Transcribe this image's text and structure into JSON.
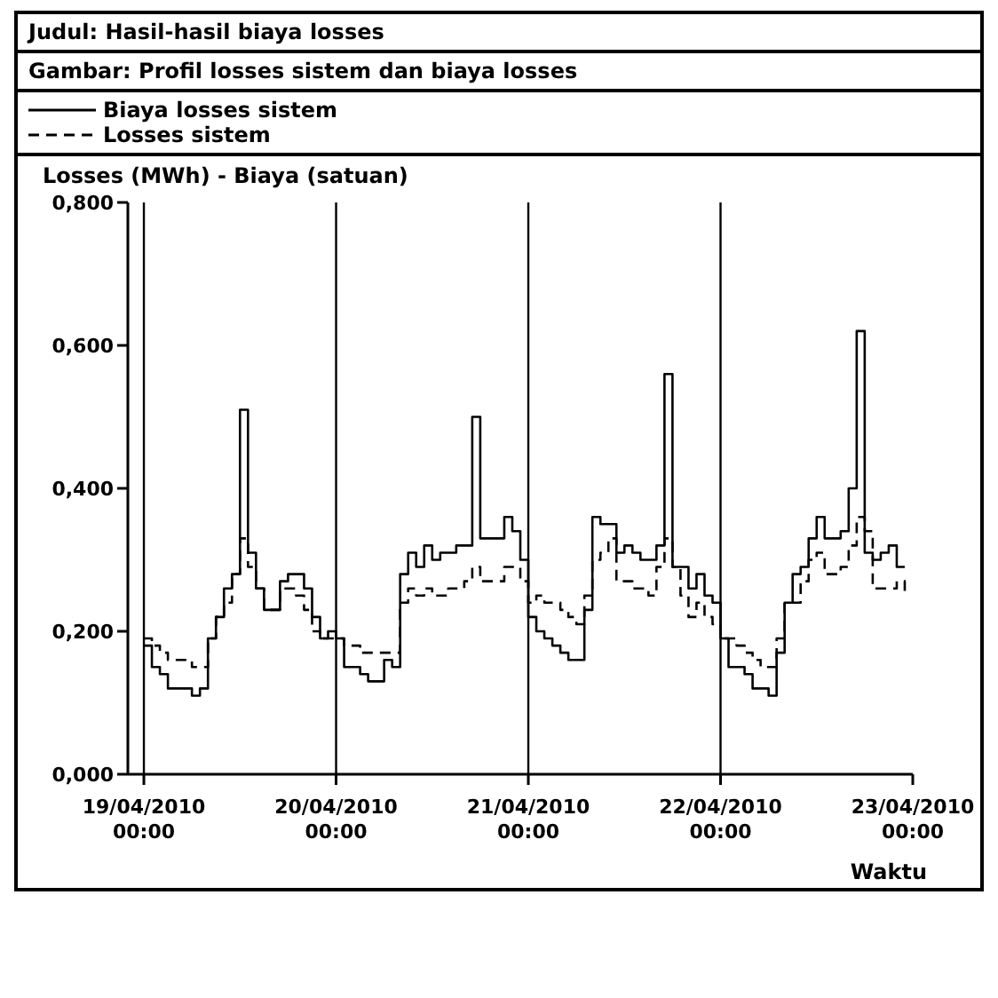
{
  "chart_data": {
    "type": "step",
    "title": "Judul: Hasil-hasil biaya losses",
    "subtitle": "Gambar: Profil losses sistem dan biaya losses",
    "xlabel": "Waktu",
    "ylabel": "Losses (MWh) - Biaya (satuan)",
    "x": [
      "2010-04-19T00:00",
      "2010-04-19T01:00",
      "2010-04-19T02:00",
      "2010-04-19T03:00",
      "2010-04-19T04:00",
      "2010-04-19T05:00",
      "2010-04-19T06:00",
      "2010-04-19T07:00",
      "2010-04-19T08:00",
      "2010-04-19T09:00",
      "2010-04-19T10:00",
      "2010-04-19T11:00",
      "2010-04-19T12:00",
      "2010-04-19T13:00",
      "2010-04-19T14:00",
      "2010-04-19T15:00",
      "2010-04-19T16:00",
      "2010-04-19T17:00",
      "2010-04-19T18:00",
      "2010-04-19T19:00",
      "2010-04-19T20:00",
      "2010-04-19T21:00",
      "2010-04-19T22:00",
      "2010-04-19T23:00",
      "2010-04-20T00:00",
      "2010-04-20T01:00",
      "2010-04-20T02:00",
      "2010-04-20T03:00",
      "2010-04-20T04:00",
      "2010-04-20T05:00",
      "2010-04-20T06:00",
      "2010-04-20T07:00",
      "2010-04-20T08:00",
      "2010-04-20T09:00",
      "2010-04-20T10:00",
      "2010-04-20T11:00",
      "2010-04-20T12:00",
      "2010-04-20T13:00",
      "2010-04-20T14:00",
      "2010-04-20T15:00",
      "2010-04-20T16:00",
      "2010-04-20T17:00",
      "2010-04-20T18:00",
      "2010-04-20T19:00",
      "2010-04-20T20:00",
      "2010-04-20T21:00",
      "2010-04-20T22:00",
      "2010-04-20T23:00",
      "2010-04-21T00:00",
      "2010-04-21T01:00",
      "2010-04-21T02:00",
      "2010-04-21T03:00",
      "2010-04-21T04:00",
      "2010-04-21T05:00",
      "2010-04-21T06:00",
      "2010-04-21T07:00",
      "2010-04-21T08:00",
      "2010-04-21T09:00",
      "2010-04-21T10:00",
      "2010-04-21T11:00",
      "2010-04-21T12:00",
      "2010-04-21T13:00",
      "2010-04-21T14:00",
      "2010-04-21T15:00",
      "2010-04-21T16:00",
      "2010-04-21T17:00",
      "2010-04-21T18:00",
      "2010-04-21T19:00",
      "2010-04-21T20:00",
      "2010-04-21T21:00",
      "2010-04-21T22:00",
      "2010-04-21T23:00",
      "2010-04-22T00:00",
      "2010-04-22T01:00",
      "2010-04-22T02:00",
      "2010-04-22T03:00",
      "2010-04-22T04:00",
      "2010-04-22T05:00",
      "2010-04-22T06:00",
      "2010-04-22T07:00",
      "2010-04-22T08:00",
      "2010-04-22T09:00",
      "2010-04-22T10:00",
      "2010-04-22T11:00",
      "2010-04-22T12:00",
      "2010-04-22T13:00",
      "2010-04-22T14:00",
      "2010-04-22T15:00",
      "2010-04-22T16:00",
      "2010-04-22T17:00",
      "2010-04-22T18:00",
      "2010-04-22T19:00",
      "2010-04-22T20:00",
      "2010-04-22T21:00",
      "2010-04-22T22:00",
      "2010-04-22T23:00"
    ],
    "series": [
      {
        "name": "Biaya losses sistem",
        "color": "#000000",
        "line_style": "solid",
        "values": [
          0.18,
          0.15,
          0.14,
          0.12,
          0.12,
          0.12,
          0.11,
          0.12,
          0.19,
          0.22,
          0.26,
          0.28,
          0.51,
          0.31,
          0.26,
          0.23,
          0.23,
          0.27,
          0.28,
          0.28,
          0.26,
          0.22,
          0.19,
          0.2,
          0.19,
          0.15,
          0.15,
          0.14,
          0.13,
          0.13,
          0.16,
          0.15,
          0.28,
          0.31,
          0.29,
          0.32,
          0.3,
          0.31,
          0.31,
          0.32,
          0.32,
          0.5,
          0.33,
          0.33,
          0.33,
          0.36,
          0.34,
          0.3,
          0.22,
          0.2,
          0.19,
          0.18,
          0.17,
          0.16,
          0.16,
          0.23,
          0.36,
          0.35,
          0.35,
          0.31,
          0.32,
          0.31,
          0.3,
          0.3,
          0.32,
          0.56,
          0.29,
          0.29,
          0.26,
          0.28,
          0.25,
          0.24,
          0.19,
          0.15,
          0.15,
          0.14,
          0.12,
          0.12,
          0.11,
          0.17,
          0.24,
          0.28,
          0.29,
          0.33,
          0.36,
          0.33,
          0.33,
          0.34,
          0.4,
          0.62,
          0.31,
          0.3,
          0.31,
          0.32,
          0.29,
          0.29
        ]
      },
      {
        "name": "Losses sistem",
        "color": "#000000",
        "line_style": "dashed",
        "values": [
          0.19,
          0.18,
          0.17,
          0.16,
          0.16,
          0.16,
          0.15,
          0.15,
          0.19,
          0.22,
          0.24,
          0.28,
          0.33,
          0.29,
          0.26,
          0.23,
          0.23,
          0.26,
          0.26,
          0.25,
          0.23,
          0.2,
          0.19,
          0.19,
          0.19,
          0.18,
          0.18,
          0.17,
          0.17,
          0.17,
          0.17,
          0.17,
          0.24,
          0.26,
          0.25,
          0.26,
          0.25,
          0.25,
          0.26,
          0.26,
          0.27,
          0.29,
          0.27,
          0.27,
          0.27,
          0.29,
          0.29,
          0.27,
          0.24,
          0.25,
          0.24,
          0.24,
          0.23,
          0.22,
          0.21,
          0.25,
          0.3,
          0.31,
          0.33,
          0.27,
          0.27,
          0.26,
          0.26,
          0.25,
          0.29,
          0.33,
          0.29,
          0.25,
          0.22,
          0.24,
          0.22,
          0.21,
          0.19,
          0.19,
          0.18,
          0.17,
          0.16,
          0.15,
          0.15,
          0.19,
          0.24,
          0.24,
          0.27,
          0.3,
          0.31,
          0.28,
          0.28,
          0.29,
          0.32,
          0.36,
          0.34,
          0.26,
          0.26,
          0.26,
          0.27,
          0.25
        ]
      }
    ],
    "xlim": [
      "2010-04-18T22:00",
      "2010-04-23T00:00"
    ],
    "xticks": [
      {
        "value": "2010-04-19T00:00",
        "label": "19/04/2010 00:00"
      },
      {
        "value": "2010-04-20T00:00",
        "label": "20/04/2010 00:00"
      },
      {
        "value": "2010-04-21T00:00",
        "label": "21/04/2010 00:00"
      },
      {
        "value": "2010-04-22T00:00",
        "label": "22/04/2010 00:00"
      },
      {
        "value": "2010-04-23T00:00",
        "label": "23/04/2010 00:00"
      }
    ],
    "ylim": [
      0,
      0.8
    ],
    "yticks": [
      {
        "value": 0,
        "label": "0,000"
      },
      {
        "value": 0.2,
        "label": "0,200"
      },
      {
        "value": 0.4,
        "label": "0,400"
      },
      {
        "value": 0.6,
        "label": "0,600"
      },
      {
        "value": 0.8,
        "label": "0,800"
      }
    ],
    "ref_lines": [
      {
        "axis": "x",
        "value": "2010-04-19T00:00",
        "color": "#000000"
      },
      {
        "axis": "x",
        "value": "2010-04-20T00:00",
        "color": "#000000"
      },
      {
        "axis": "x",
        "value": "2010-04-21T00:00",
        "color": "#000000"
      },
      {
        "axis": "x",
        "value": "2010-04-22T00:00",
        "color": "#000000"
      }
    ],
    "grid": false,
    "legend": "top left",
    "marker": "none"
  }
}
